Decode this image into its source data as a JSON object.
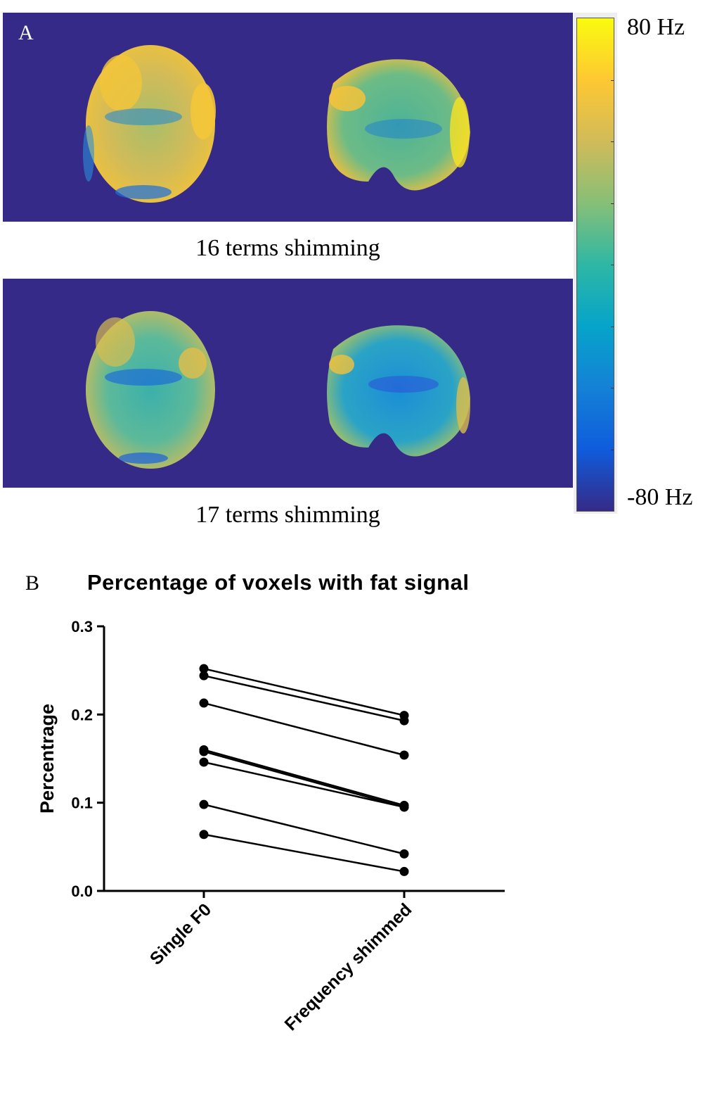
{
  "panel_a": {
    "letter": "A",
    "captions": [
      "16 terms shimming",
      "17 terms shimming"
    ],
    "colorbar": {
      "max_label": "80 Hz",
      "min_label": "-80 Hz",
      "colors": [
        "#352a87",
        "#0f5cdd",
        "#1481d6",
        "#06a4ca",
        "#2eb7a4",
        "#87bf77",
        "#d1bb59",
        "#fec832",
        "#f9fb0e"
      ]
    }
  },
  "panel_b": {
    "letter": "B"
  },
  "chart_data": {
    "type": "line",
    "title": "Percentage of voxels with fat signal",
    "xlabel": "",
    "ylabel": "Percentrage",
    "categories": [
      "Single F0",
      "Frequency shimmed"
    ],
    "ylim": [
      0.0,
      0.3
    ],
    "yticks": [
      "0.0",
      "0.1",
      "0.2",
      "0.3"
    ],
    "grid": false,
    "series": [
      {
        "values": [
          0.252,
          0.199
        ]
      },
      {
        "values": [
          0.244,
          0.193
        ]
      },
      {
        "values": [
          0.213,
          0.154
        ]
      },
      {
        "values": [
          0.16,
          0.097
        ]
      },
      {
        "values": [
          0.158,
          0.095
        ]
      },
      {
        "values": [
          0.146,
          0.095
        ]
      },
      {
        "values": [
          0.098,
          0.042
        ]
      },
      {
        "values": [
          0.064,
          0.022
        ]
      }
    ]
  }
}
